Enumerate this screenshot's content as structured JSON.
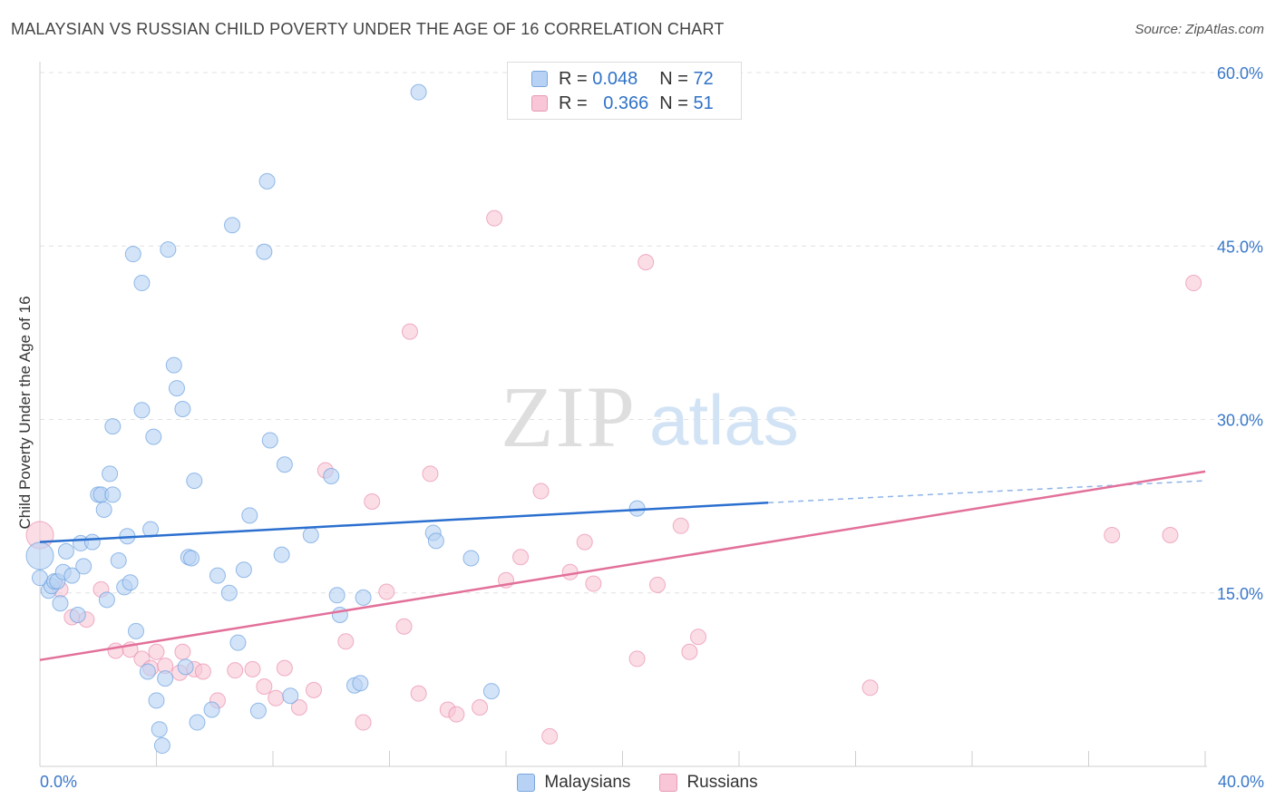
{
  "title": "MALAYSIAN VS RUSSIAN CHILD POVERTY UNDER THE AGE OF 16 CORRELATION CHART",
  "source": "Source: ZipAtlas.com",
  "watermark": {
    "zip": "ZIP",
    "atlas": "atlas"
  },
  "legend": {
    "r_label": "R =",
    "n_label": "N =",
    "rows": [
      {
        "series": "Malaysians",
        "r": "0.048",
        "n": "72",
        "color": "#6a9fde"
      },
      {
        "series": "Russians",
        "r": "0.366",
        "n": "51",
        "color": "#ea8eae"
      }
    ]
  },
  "x_axis": {
    "min_label": "0.0%",
    "max_label": "40.0%"
  },
  "chart_data": {
    "type": "scatter",
    "title": "MALAYSIAN VS RUSSIAN CHILD POVERTY UNDER THE AGE OF 16 CORRELATION CHART",
    "xlabel": "",
    "ylabel": "Child Poverty Under the Age of 16",
    "xlim": [
      0,
      40
    ],
    "ylim": [
      0,
      60
    ],
    "y_ticks": [
      15,
      30,
      45,
      60
    ],
    "y_tick_labels": [
      "15.0%",
      "30.0%",
      "45.0%",
      "60.0%"
    ],
    "x_tick_labels": [
      "0.0%",
      "40.0%"
    ],
    "grid": true,
    "legend_position": "top-center",
    "series": [
      {
        "name": "Malaysians",
        "color": "#6a9fde",
        "fill": "#b7d2f4",
        "r": 0.048,
        "n": 72,
        "trend": {
          "x": [
            0,
            25
          ],
          "y": [
            19.4,
            22.8
          ],
          "dashed_to": [
            40,
            24.7
          ]
        },
        "points": [
          [
            0.0,
            16.3
          ],
          [
            0.0,
            18.2
          ],
          [
            0.3,
            15.2
          ],
          [
            0.4,
            15.6
          ],
          [
            0.5,
            16.0
          ],
          [
            0.6,
            16.0
          ],
          [
            0.7,
            14.1
          ],
          [
            0.8,
            16.8
          ],
          [
            0.9,
            18.6
          ],
          [
            1.1,
            16.5
          ],
          [
            1.3,
            13.1
          ],
          [
            1.4,
            19.3
          ],
          [
            1.5,
            17.3
          ],
          [
            1.8,
            19.4
          ],
          [
            2.0,
            23.5
          ],
          [
            2.1,
            23.5
          ],
          [
            2.2,
            22.2
          ],
          [
            2.3,
            14.4
          ],
          [
            2.4,
            25.3
          ],
          [
            2.5,
            29.4
          ],
          [
            2.5,
            23.5
          ],
          [
            2.7,
            17.8
          ],
          [
            2.9,
            15.5
          ],
          [
            3.0,
            19.9
          ],
          [
            3.1,
            15.9
          ],
          [
            3.2,
            44.3
          ],
          [
            3.3,
            11.7
          ],
          [
            3.5,
            41.8
          ],
          [
            3.5,
            30.8
          ],
          [
            3.7,
            8.2
          ],
          [
            3.8,
            20.5
          ],
          [
            3.9,
            28.5
          ],
          [
            4.0,
            5.7
          ],
          [
            4.1,
            3.2
          ],
          [
            4.2,
            1.8
          ],
          [
            4.3,
            7.6
          ],
          [
            4.4,
            44.7
          ],
          [
            4.6,
            34.7
          ],
          [
            4.7,
            32.7
          ],
          [
            4.9,
            30.9
          ],
          [
            5.0,
            8.6
          ],
          [
            5.1,
            18.1
          ],
          [
            5.2,
            18.0
          ],
          [
            5.3,
            24.7
          ],
          [
            5.4,
            3.8
          ],
          [
            5.9,
            4.9
          ],
          [
            6.1,
            16.5
          ],
          [
            6.5,
            15.0
          ],
          [
            6.8,
            10.7
          ],
          [
            6.6,
            46.8
          ],
          [
            7.0,
            17.0
          ],
          [
            7.5,
            4.8
          ],
          [
            7.7,
            44.5
          ],
          [
            7.8,
            50.6
          ],
          [
            7.9,
            28.2
          ],
          [
            8.3,
            18.3
          ],
          [
            8.4,
            26.1
          ],
          [
            8.6,
            6.1
          ],
          [
            9.3,
            20.0
          ],
          [
            10.0,
            25.1
          ],
          [
            10.2,
            14.8
          ],
          [
            10.3,
            13.1
          ],
          [
            10.8,
            7.0
          ],
          [
            11.0,
            7.2
          ],
          [
            11.1,
            14.6
          ],
          [
            13.0,
            58.3
          ],
          [
            13.5,
            20.2
          ],
          [
            13.6,
            19.5
          ],
          [
            14.8,
            18.0
          ],
          [
            15.5,
            6.5
          ],
          [
            20.5,
            22.3
          ],
          [
            7.2,
            21.7
          ]
        ]
      },
      {
        "name": "Russians",
        "color": "#ea8eae",
        "fill": "#f8c6d6",
        "r": 0.366,
        "n": 51,
        "trend": {
          "x": [
            0,
            40
          ],
          "y": [
            9.2,
            25.5
          ]
        },
        "points": [
          [
            0.0,
            20.0
          ],
          [
            0.7,
            15.3
          ],
          [
            1.1,
            12.9
          ],
          [
            1.6,
            12.7
          ],
          [
            2.1,
            15.3
          ],
          [
            2.6,
            10.0
          ],
          [
            3.1,
            10.1
          ],
          [
            3.5,
            9.3
          ],
          [
            3.8,
            8.5
          ],
          [
            4.0,
            9.9
          ],
          [
            4.3,
            8.7
          ],
          [
            4.8,
            8.1
          ],
          [
            4.9,
            9.9
          ],
          [
            5.3,
            8.4
          ],
          [
            5.6,
            8.2
          ],
          [
            6.1,
            5.7
          ],
          [
            6.7,
            8.3
          ],
          [
            7.3,
            8.4
          ],
          [
            7.7,
            6.9
          ],
          [
            8.1,
            5.9
          ],
          [
            8.4,
            8.5
          ],
          [
            8.9,
            5.1
          ],
          [
            9.4,
            6.6
          ],
          [
            9.8,
            25.6
          ],
          [
            10.5,
            10.8
          ],
          [
            11.1,
            3.8
          ],
          [
            11.4,
            22.9
          ],
          [
            11.9,
            15.1
          ],
          [
            12.5,
            12.1
          ],
          [
            12.7,
            37.6
          ],
          [
            13.0,
            6.3
          ],
          [
            13.4,
            25.3
          ],
          [
            14.0,
            4.9
          ],
          [
            14.3,
            4.5
          ],
          [
            15.1,
            5.1
          ],
          [
            15.6,
            47.4
          ],
          [
            16.0,
            16.1
          ],
          [
            16.5,
            18.1
          ],
          [
            17.2,
            23.8
          ],
          [
            17.5,
            2.6
          ],
          [
            18.2,
            16.8
          ],
          [
            18.7,
            19.4
          ],
          [
            19.0,
            15.8
          ],
          [
            20.5,
            9.3
          ],
          [
            20.8,
            43.6
          ],
          [
            21.2,
            15.7
          ],
          [
            22.0,
            20.8
          ],
          [
            22.3,
            9.9
          ],
          [
            22.6,
            11.2
          ],
          [
            28.5,
            6.8
          ],
          [
            36.8,
            20.0
          ]
        ]
      }
    ]
  },
  "extra_pink_points": [
    [
      39.6,
      41.8
    ],
    [
      38.8,
      20.0
    ]
  ]
}
